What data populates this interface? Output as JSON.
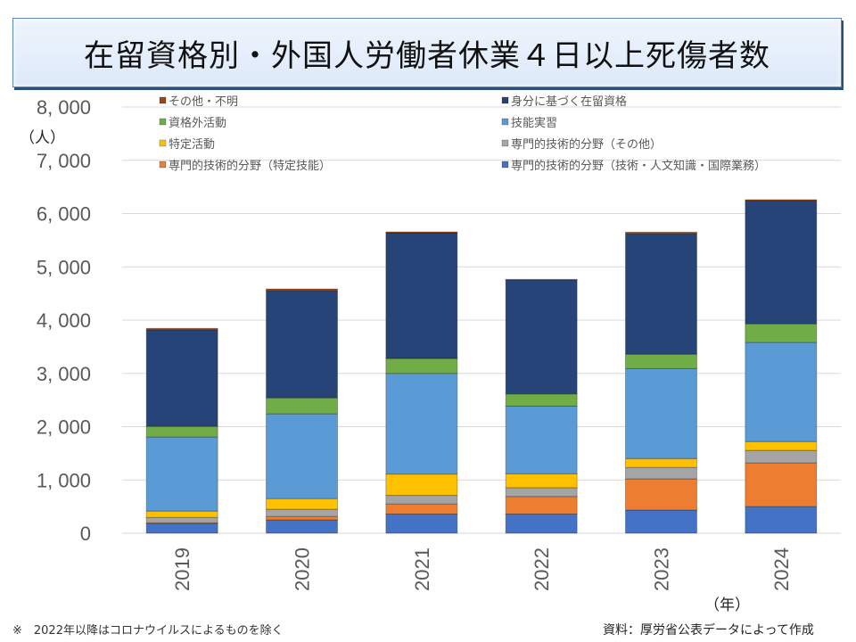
{
  "title": "在留資格別・外国人労働者休業４日以上死傷者数",
  "y_unit": "（人）",
  "x_unit": "（年）",
  "footnote": "※　2022年以降はコロナウイルスによるものを除く",
  "source": "資料：厚労省公表データによって作成",
  "chart_data": {
    "type": "bar",
    "stacked": true,
    "title": "在留資格別・外国人労働者休業４日以上死傷者数",
    "xlabel": "（年）",
    "ylabel": "（人）",
    "ylim": [
      0,
      8000
    ],
    "yticks": [
      0,
      1000,
      2000,
      3000,
      4000,
      5000,
      6000,
      7000,
      8000
    ],
    "ytick_labels": [
      "0",
      "1, 000",
      "2, 000",
      "3, 000",
      "4, 000",
      "5, 000",
      "6, 000",
      "7, 000",
      "8, 000"
    ],
    "grid": true,
    "legend_position": "top",
    "categories": [
      "2019",
      "2020",
      "2021",
      "2022",
      "2023",
      "2024"
    ],
    "series": [
      {
        "name": "専門的技術的分野（技術・人文知識・国際業務）",
        "color": "#4472c4",
        "values": [
          185,
          250,
          360,
          360,
          435,
          500
        ]
      },
      {
        "name": "専門的技術的分野（特定技能）",
        "color": "#ed7d31",
        "values": [
          10,
          65,
          190,
          330,
          585,
          820
        ]
      },
      {
        "name": "専門的技術的分野（その他）",
        "color": "#a5a5a5",
        "values": [
          100,
          135,
          160,
          165,
          215,
          235
        ]
      },
      {
        "name": "特定活動",
        "color": "#ffc000",
        "values": [
          120,
          200,
          400,
          260,
          165,
          165
        ]
      },
      {
        "name": "技能実習",
        "color": "#5b9bd5",
        "values": [
          1390,
          1590,
          1890,
          1270,
          1690,
          1860
        ]
      },
      {
        "name": "資格外活動",
        "color": "#70ad47",
        "values": [
          200,
          300,
          280,
          230,
          270,
          350
        ]
      },
      {
        "name": "身分に基づく在留資格",
        "color": "#264478",
        "values": [
          1810,
          2010,
          2360,
          2140,
          2260,
          2310
        ]
      },
      {
        "name": "その他・不明",
        "color": "#9e480e",
        "values": [
          30,
          35,
          15,
          10,
          30,
          20
        ]
      }
    ],
    "legend_order": [
      "その他・不明",
      "身分に基づく在留資格",
      "資格外活動",
      "技能実習",
      "特定活動",
      "専門的技術的分野（その他）",
      "専門的技術的分野（特定技能）",
      "専門的技術的分野（技術・人文知識・国際業務）"
    ]
  }
}
